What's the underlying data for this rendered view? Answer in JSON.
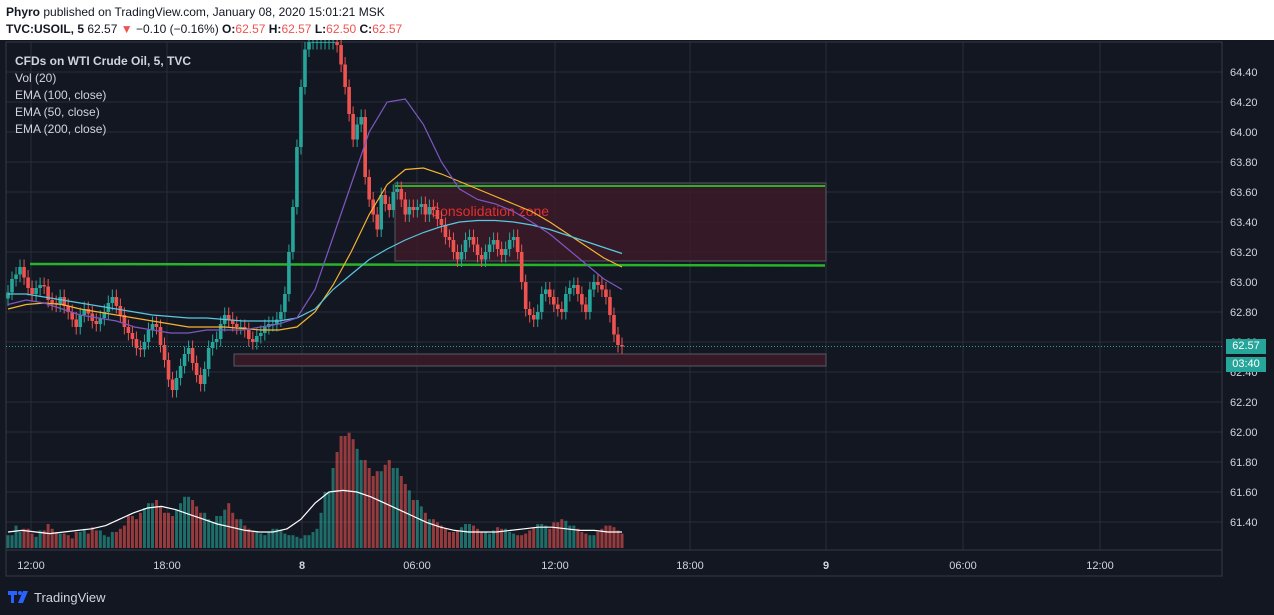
{
  "header": {
    "author": "Phyro",
    "published_text": "published on TradingView.com, January 08, 2020 15:01:21 MSK",
    "symbol": "TVC:USOIL, 5",
    "last": "62.57",
    "down_arrow": "▼",
    "change": "−0.10 (−0.16%)",
    "o_label": "O:",
    "o_value": "62.57",
    "h_label": "H:",
    "h_value": "62.57",
    "l_label": "L:",
    "l_value": "62.50",
    "c_label": "C:",
    "c_value": "62.57"
  },
  "legend": {
    "title": "CFDs on WTI Crude Oil, 5, TVC",
    "items": [
      "Vol (20)",
      "EMA (100, close)",
      "EMA (50, close)",
      "EMA (200, close)"
    ]
  },
  "price_tag": "62.57",
  "timer_tag": "03:40",
  "footer": {
    "brand": "TradingView"
  },
  "colors": {
    "background": "#131722",
    "up": "#26a69a",
    "down": "#ef5350",
    "ema_100": "#5ac8e0",
    "ema_50": "#7e57c2",
    "ema_200": "#f5b431",
    "support_line": "#28b428",
    "zone_fill": "#3c1a28",
    "zone_text": "#e03030",
    "volume_ma": "#ffffff"
  },
  "chart_data": {
    "type": "candlestick",
    "timeframe": "5",
    "x_ticks": [
      "12:00",
      "18:00",
      "8",
      "06:00",
      "12:00",
      "18:00",
      "9",
      "06:00",
      "12:00"
    ],
    "y_ticks": [
      "64.40",
      "64.20",
      "64.00",
      "63.80",
      "63.60",
      "63.40",
      "63.20",
      "63.00",
      "62.80",
      "62.60",
      "62.40",
      "62.20",
      "62.00",
      "61.80",
      "61.60",
      "61.40"
    ],
    "ylim": [
      61.25,
      64.6
    ],
    "last_price": 62.57,
    "series_close": [
      62.93,
      63.02,
      63.05,
      63.1,
      63.03,
      62.96,
      62.92,
      62.96,
      62.98,
      62.97,
      62.88,
      62.86,
      62.85,
      62.9,
      62.84,
      62.8,
      62.75,
      62.7,
      62.78,
      62.82,
      62.79,
      62.74,
      62.72,
      62.76,
      62.8,
      62.86,
      62.9,
      62.84,
      62.78,
      62.7,
      62.66,
      62.62,
      62.56,
      62.55,
      62.6,
      62.68,
      62.72,
      62.7,
      62.58,
      62.48,
      62.35,
      62.28,
      62.36,
      62.44,
      62.52,
      62.56,
      62.46,
      62.38,
      62.32,
      62.42,
      62.56,
      62.6,
      62.62,
      62.72,
      62.78,
      62.75,
      62.72,
      62.7,
      62.7,
      62.68,
      62.62,
      62.6,
      62.64,
      62.66,
      62.7,
      62.72,
      62.72,
      62.75,
      62.8,
      62.92,
      63.2,
      63.5,
      63.9,
      64.3,
      64.55,
      64.6,
      64.6,
      64.6,
      64.6,
      64.6,
      64.6,
      64.6,
      64.58,
      64.45,
      64.3,
      64.12,
      63.95,
      64.05,
      64.1,
      63.7,
      63.55,
      63.45,
      63.35,
      63.58,
      63.52,
      63.48,
      63.6,
      63.62,
      63.55,
      63.45,
      63.5,
      63.48,
      63.5,
      63.52,
      63.45,
      63.5,
      63.48,
      63.42,
      63.38,
      63.3,
      63.28,
      63.2,
      63.15,
      63.2,
      63.28,
      63.3,
      63.25,
      63.18,
      63.15,
      63.2,
      63.25,
      63.28,
      63.22,
      63.18,
      63.22,
      63.28,
      63.3,
      63.2,
      63.0,
      62.82,
      62.78,
      62.75,
      62.8,
      62.92,
      62.95,
      62.9,
      62.85,
      62.82,
      62.8,
      62.92,
      62.96,
      62.98,
      62.92,
      62.85,
      62.8,
      62.95,
      63.0,
      62.98,
      62.95,
      62.9,
      62.78,
      62.65,
      62.58,
      62.57
    ],
    "ema_100": [
      62.92,
      62.92,
      62.9,
      62.88,
      62.86,
      62.84,
      62.82,
      62.8,
      62.78,
      62.77,
      62.76,
      62.76,
      62.75,
      62.74,
      62.74,
      62.74,
      62.76,
      62.82,
      62.95,
      63.05,
      63.15,
      63.22,
      63.28,
      63.33,
      63.37,
      63.4,
      63.41,
      63.41,
      63.4,
      63.38,
      63.35,
      63.31,
      63.27,
      63.23,
      63.19
    ],
    "ema_50": [
      62.85,
      62.88,
      62.86,
      62.82,
      62.78,
      62.76,
      62.74,
      62.7,
      62.68,
      62.66,
      62.66,
      62.68,
      62.68,
      62.68,
      62.7,
      62.72,
      62.76,
      62.95,
      63.3,
      63.65,
      64.0,
      64.2,
      64.22,
      64.05,
      63.8,
      63.62,
      63.55,
      63.52,
      63.47,
      63.4,
      63.32,
      63.22,
      63.12,
      63.02,
      62.95
    ],
    "ema_200": [
      62.82,
      62.85,
      62.86,
      62.85,
      62.82,
      62.8,
      62.78,
      62.76,
      62.74,
      62.72,
      62.7,
      62.7,
      62.7,
      62.69,
      62.68,
      62.68,
      62.7,
      62.8,
      62.98,
      63.2,
      63.45,
      63.65,
      63.75,
      63.76,
      63.72,
      63.67,
      63.62,
      63.57,
      63.52,
      63.47,
      63.4,
      63.32,
      63.24,
      63.16,
      63.1
    ],
    "support_lines": [
      {
        "from_x": 30,
        "price_start": 63.12,
        "to_x": 825,
        "price_end": 63.11
      },
      {
        "from_x": 395,
        "price_start": 63.64,
        "to_x": 825,
        "price_end": 63.64
      }
    ],
    "zones": [
      {
        "label": "Consolidation zone",
        "price_top": 63.66,
        "price_bottom": 63.14,
        "x_from": 395,
        "x_to": 826
      },
      {
        "label": "",
        "price_top": 62.52,
        "price_bottom": 62.44,
        "x_from": 234,
        "x_to": 826
      }
    ],
    "volume": [
      8,
      14,
      10,
      12,
      9,
      7,
      11,
      15,
      12,
      10,
      9,
      8,
      6,
      10,
      12,
      9,
      13,
      11,
      8,
      7,
      10,
      12,
      14,
      20,
      18,
      22,
      25,
      28,
      30,
      26,
      22,
      20,
      24,
      28,
      32,
      30,
      26,
      22,
      18,
      16,
      20,
      24,
      28,
      22,
      18,
      14,
      12,
      10,
      9,
      8,
      10,
      12,
      11,
      9,
      8,
      7,
      6,
      8,
      10,
      12,
      22,
      35,
      50,
      60,
      70,
      72,
      68,
      62,
      55,
      50,
      45,
      48,
      52,
      55,
      50,
      45,
      40,
      36,
      30,
      26,
      22,
      18,
      16,
      14,
      12,
      10,
      11,
      13,
      15,
      14,
      12,
      10,
      9,
      11,
      13,
      12,
      10,
      9,
      8,
      9,
      11,
      13,
      15,
      14,
      12,
      16,
      18,
      17,
      14,
      12,
      10,
      9,
      8,
      10,
      12,
      14,
      13,
      11,
      9
    ],
    "volume_ma": [
      10,
      11,
      10,
      9,
      10,
      11,
      12,
      14,
      18,
      22,
      25,
      26,
      24,
      21,
      18,
      15,
      13,
      11,
      10,
      10,
      12,
      18,
      28,
      35,
      36,
      35,
      32,
      28,
      24,
      20,
      16,
      13,
      11,
      10,
      10,
      10,
      11,
      12,
      13,
      13,
      12,
      11,
      11,
      10,
      10
    ]
  }
}
